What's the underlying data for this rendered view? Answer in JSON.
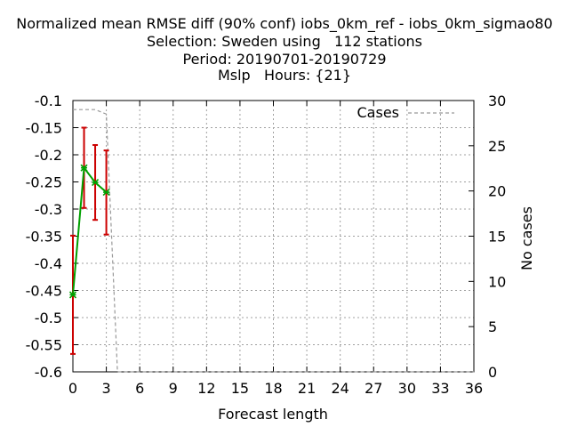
{
  "titles": [
    "Normalized mean RMSE diff (90% conf) iobs_0km_ref - iobs_0km_sigmao80",
    "Selection: Sweden using   112 stations",
    "Period: 20190701-20190729",
    "Mslp   Hours: {21}"
  ],
  "chart_data": {
    "type": "line",
    "xlabel": "Forecast length",
    "ylabel": "",
    "y2label": "No cases",
    "xlim": [
      0,
      36
    ],
    "ylim": [
      -0.6,
      -0.1
    ],
    "y2lim": [
      0,
      30
    ],
    "xticks": [
      "0",
      "3",
      "6",
      "9",
      "12",
      "15",
      "18",
      "21",
      "24",
      "27",
      "30",
      "33",
      "36"
    ],
    "yticks": [
      "-0.1",
      "-0.15",
      "-0.2",
      "-0.25",
      "-0.3",
      "-0.35",
      "-0.4",
      "-0.45",
      "-0.5",
      "-0.55",
      "-0.6"
    ],
    "y2ticks": [
      "30",
      "25",
      "20",
      "15",
      "10",
      "5",
      "0"
    ],
    "grid": true,
    "legend": "top-right",
    "series": [
      {
        "name": "",
        "color": "#00a000",
        "x": [
          0,
          1,
          2,
          3
        ],
        "y": [
          -0.458,
          -0.224,
          -0.251,
          -0.269
        ],
        "err_low": [
          -0.567,
          -0.298,
          -0.32,
          -0.347
        ],
        "err_high": [
          -0.349,
          -0.15,
          -0.182,
          -0.192
        ],
        "err_color": "#cc0000"
      },
      {
        "name": "Cases",
        "axis": "y2",
        "color": "#999999",
        "dash": "dashed",
        "x": [
          0,
          1,
          2,
          3,
          4,
          5,
          6,
          9,
          12,
          15,
          18,
          21,
          24,
          27,
          30,
          33,
          36
        ],
        "y": [
          29,
          29,
          29,
          28.5,
          0,
          0,
          0,
          0,
          0,
          0,
          0,
          0,
          0,
          0,
          0,
          0,
          0
        ]
      }
    ]
  }
}
